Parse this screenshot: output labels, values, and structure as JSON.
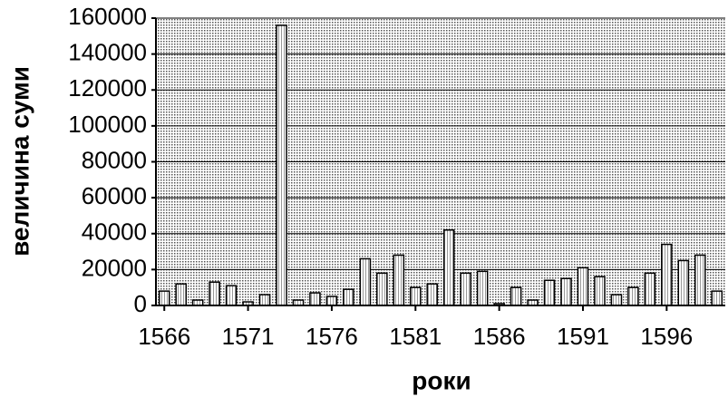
{
  "chart_data": {
    "type": "bar",
    "x_label": "роки",
    "y_label": "величина суми",
    "categories": [
      "1566",
      null,
      null,
      null,
      null,
      "1571",
      null,
      null,
      null,
      null,
      "1576",
      null,
      null,
      null,
      null,
      "1581",
      null,
      null,
      null,
      null,
      "1586",
      null,
      null,
      null,
      null,
      "1591",
      null,
      null,
      null,
      null,
      "1596",
      null,
      null,
      null
    ],
    "values": [
      8000,
      12000,
      3000,
      13000,
      11000,
      2000,
      6000,
      156000,
      3000,
      7000,
      5000,
      9000,
      26000,
      18000,
      28000,
      10000,
      12000,
      42000,
      18000,
      19000,
      1000,
      10000,
      3000,
      14000,
      15000,
      21000,
      16000,
      6000,
      10000,
      18000,
      34000,
      25000,
      28000,
      8000
    ],
    "color": "#ffffff",
    "ylim": [
      0,
      160000
    ],
    "yticks": [
      0,
      20000,
      40000,
      60000,
      80000,
      100000,
      120000,
      140000,
      160000
    ],
    "grid": true
  }
}
